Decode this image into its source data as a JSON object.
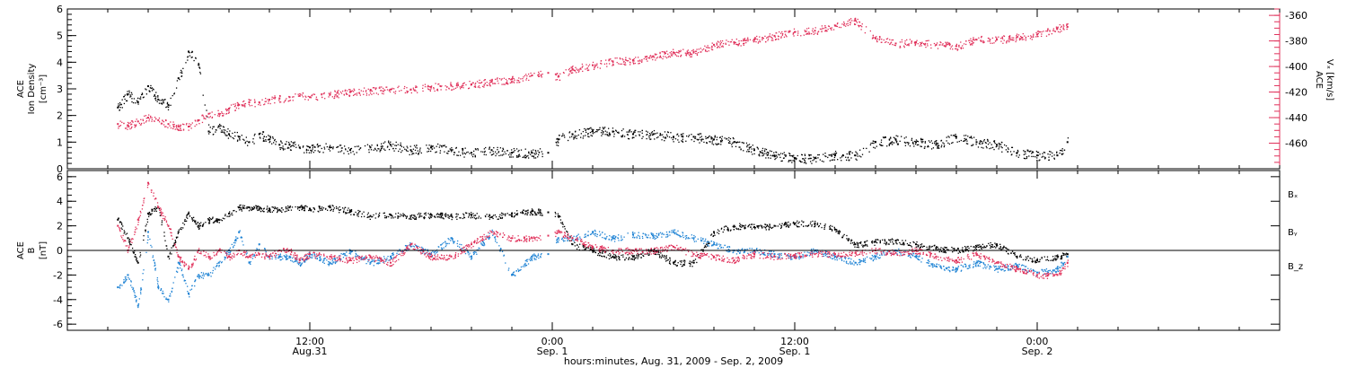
{
  "chart_data": [
    {
      "type": "scatter",
      "panel": "top",
      "ylabel_left": [
        "ACE",
        "Ion Density",
        "[cm⁻³]"
      ],
      "ylabel_right": [
        "ACE",
        "Vₓ [km/s]"
      ],
      "ylim_left": [
        0,
        6
      ],
      "yticks_left": [
        0,
        1,
        2,
        3,
        4,
        5,
        6
      ],
      "ylim_right": [
        -480,
        -355
      ],
      "yticks_right": [
        -460,
        -440,
        -420,
        -400,
        -380,
        -360
      ],
      "grid": false,
      "series": [
        {
          "name": "Ion Density",
          "axis": "left",
          "color": "#000000",
          "x": [
            2.5,
            3,
            3.5,
            4,
            4.5,
            5,
            5.5,
            6,
            6.5,
            7,
            7.5,
            8,
            8.5,
            9,
            9.5,
            10,
            10.5,
            11,
            11.5,
            12,
            13,
            14,
            15,
            16,
            17,
            18,
            19,
            20,
            21,
            22,
            23,
            23.8,
            24.3,
            25,
            26,
            27,
            28,
            29,
            30,
            31,
            32,
            33,
            34,
            35,
            36,
            37,
            38,
            39,
            40,
            41,
            42,
            43,
            44,
            45,
            46,
            47,
            48,
            49,
            49.5
          ],
          "y": [
            2.3,
            2.8,
            2.5,
            3.1,
            2.6,
            2.4,
            3.4,
            4.4,
            3.9,
            1.4,
            1.6,
            1.3,
            1.2,
            1.0,
            1.3,
            1.1,
            0.9,
            0.9,
            0.8,
            0.8,
            0.8,
            0.7,
            0.8,
            0.9,
            0.7,
            0.8,
            0.7,
            0.6,
            0.7,
            0.6,
            0.6,
            0.6,
            1.1,
            1.3,
            1.4,
            1.4,
            1.3,
            1.3,
            1.2,
            1.2,
            1.1,
            1.0,
            0.7,
            0.5,
            0.4,
            0.4,
            0.5,
            0.5,
            1.0,
            1.1,
            1.0,
            0.9,
            1.2,
            1.0,
            0.9,
            0.6,
            0.5,
            0.5,
            1.0
          ]
        },
        {
          "name": "Vx",
          "axis": "right",
          "color": "#e0305a",
          "x": [
            2.5,
            3,
            3.5,
            4,
            4.5,
            5,
            5.5,
            6,
            6.5,
            7,
            7.5,
            8,
            8.5,
            9,
            9.5,
            10,
            10.5,
            11,
            11.5,
            12,
            13,
            14,
            15,
            16,
            17,
            18,
            19,
            20,
            21,
            22,
            23,
            23.8,
            24.3,
            25,
            26,
            27,
            28,
            29,
            30,
            31,
            32,
            33,
            34,
            35,
            36,
            37,
            38,
            39,
            40,
            41,
            42,
            43,
            44,
            45,
            46,
            47,
            48,
            49,
            49.5
          ],
          "y": [
            -445,
            -446,
            -443,
            -440,
            -442,
            -445,
            -447,
            -447,
            -442,
            -437,
            -437,
            -433,
            -430,
            -428,
            -428,
            -426,
            -425,
            -424,
            -423,
            -424,
            -422,
            -420,
            -419,
            -418,
            -418,
            -416,
            -415,
            -414,
            -412,
            -410,
            -407,
            -405,
            -408,
            -402,
            -399,
            -396,
            -395,
            -392,
            -389,
            -389,
            -383,
            -381,
            -379,
            -376,
            -373,
            -372,
            -368,
            -364,
            -378,
            -382,
            -381,
            -383,
            -384,
            -379,
            -379,
            -377,
            -375,
            -370,
            -369
          ]
        }
      ]
    },
    {
      "type": "scatter",
      "panel": "bottom",
      "ylabel_left": [
        "ACE",
        "B",
        "[nT]"
      ],
      "ylim": [
        -6.5,
        6.5
      ],
      "yticks": [
        -6,
        -4,
        -2,
        0,
        2,
        4,
        6
      ],
      "zero_line": true,
      "legend": "right",
      "series": [
        {
          "name": "Bₓ",
          "color": "#000000",
          "x": [
            2.5,
            3,
            3.5,
            4,
            4.5,
            5,
            5.5,
            6,
            6.5,
            7,
            7.5,
            8,
            8.5,
            9,
            9.5,
            10,
            10.5,
            11,
            11.5,
            12,
            13,
            14,
            15,
            16,
            17,
            18,
            19,
            20,
            21,
            22,
            23,
            23.8,
            24.3,
            25,
            26,
            27,
            28,
            29,
            30,
            31,
            32,
            33,
            34,
            35,
            36,
            37,
            38,
            39,
            40,
            41,
            42,
            43,
            44,
            45,
            46,
            47,
            48,
            49,
            49.5
          ],
          "y": [
            2.5,
            1.0,
            -1.0,
            3.0,
            3.5,
            -0.5,
            1.5,
            3.0,
            2.0,
            2.5,
            2.5,
            3.0,
            3.5,
            3.5,
            3.4,
            3.4,
            3.3,
            3.5,
            3.5,
            3.4,
            3.5,
            3.2,
            2.8,
            2.9,
            2.8,
            2.9,
            2.8,
            2.9,
            2.7,
            3.0,
            3.2,
            3.1,
            2.8,
            0.5,
            0.0,
            -0.5,
            -0.5,
            0.0,
            -1.0,
            -1.0,
            1.5,
            2.0,
            1.9,
            2.0,
            2.2,
            2.2,
            1.7,
            0.5,
            0.7,
            0.8,
            0.5,
            0.2,
            0.0,
            0.3,
            0.5,
            -0.5,
            -0.8,
            -0.5,
            -0.3
          ]
        },
        {
          "name": "Bᵧ",
          "color": "#1f83d4",
          "x": [
            2.5,
            3,
            3.5,
            4,
            4.5,
            5,
            5.5,
            6,
            6.5,
            7,
            7.5,
            8,
            8.5,
            9,
            9.5,
            10,
            10.5,
            11,
            11.5,
            12,
            13,
            14,
            15,
            16,
            17,
            18,
            19,
            20,
            21,
            22,
            23,
            23.8,
            24.3,
            25,
            26,
            27,
            28,
            29,
            30,
            31,
            32,
            33,
            34,
            35,
            36,
            37,
            38,
            39,
            40,
            41,
            42,
            43,
            44,
            45,
            46,
            47,
            48,
            49,
            49.5
          ],
          "y": [
            -3.0,
            -2.0,
            -4.5,
            1.5,
            -3.0,
            -4.0,
            -1.0,
            -3.5,
            -2.0,
            -2.0,
            -1.0,
            0.0,
            1.5,
            -1.0,
            0.5,
            -0.5,
            -0.5,
            -0.5,
            -1.0,
            -0.3,
            -1.0,
            0.0,
            -1.0,
            -0.5,
            0.5,
            -0.3,
            1.0,
            -0.5,
            1.5,
            -2.0,
            -0.5,
            -0.3,
            1.0,
            1.0,
            1.5,
            1.0,
            1.3,
            1.2,
            1.5,
            1.0,
            0.5,
            0.0,
            0.0,
            -0.3,
            -0.5,
            0.0,
            -0.5,
            -1.0,
            -0.5,
            0.0,
            -0.5,
            -1.3,
            -1.5,
            -1.0,
            -1.5,
            -1.2,
            -1.8,
            -1.5,
            -0.5
          ]
        },
        {
          "name": "B_z",
          "color": "#e0305a",
          "x": [
            2.5,
            3,
            3.5,
            4,
            4.5,
            5,
            5.5,
            6,
            6.5,
            7,
            7.5,
            8,
            8.5,
            9,
            9.5,
            10,
            10.5,
            11,
            11.5,
            12,
            13,
            14,
            15,
            16,
            17,
            18,
            19,
            20,
            21,
            22,
            23,
            23.8,
            24.3,
            25,
            26,
            27,
            28,
            29,
            30,
            31,
            32,
            33,
            34,
            35,
            36,
            37,
            38,
            39,
            40,
            41,
            42,
            43,
            44,
            45,
            46,
            47,
            48,
            49,
            49.5
          ],
          "y": [
            2.0,
            0.0,
            2.5,
            5.5,
            3.5,
            2.0,
            -0.5,
            -1.5,
            0.0,
            -0.5,
            0.0,
            -0.5,
            0.0,
            -0.5,
            -0.3,
            -0.5,
            0.0,
            0.0,
            -0.8,
            -0.3,
            -0.5,
            -0.8,
            -0.5,
            -1.0,
            0.5,
            -0.5,
            -0.5,
            0.5,
            1.5,
            1.0,
            1.0,
            1.2,
            1.5,
            1.0,
            0.3,
            0.0,
            0.0,
            0.0,
            0.3,
            -0.3,
            -0.5,
            -0.8,
            -0.3,
            -0.5,
            -0.4,
            -0.3,
            -0.3,
            -0.2,
            0.0,
            -0.2,
            0.0,
            -0.5,
            -0.8,
            -0.3,
            -1.0,
            -1.5,
            -2.0,
            -2.0,
            -1.0
          ]
        }
      ]
    }
  ],
  "x_axis": {
    "xlim": [
      0,
      60
    ],
    "xlabel": "hours:minutes, Aug. 31, 2009 - Sep.  2, 2009",
    "major_ticks": [
      {
        "x": 12,
        "time": "12:00",
        "date": "Aug.31"
      },
      {
        "x": 24,
        "time": "0:00",
        "date": "Sep. 1"
      },
      {
        "x": 36,
        "time": "12:00",
        "date": "Sep. 1"
      },
      {
        "x": 48,
        "time": "0:00",
        "date": "Sep. 2"
      }
    ],
    "minor_step": 2
  },
  "colors": {
    "black": "#000000",
    "red": "#e0305a",
    "blue": "#1f83d4"
  }
}
